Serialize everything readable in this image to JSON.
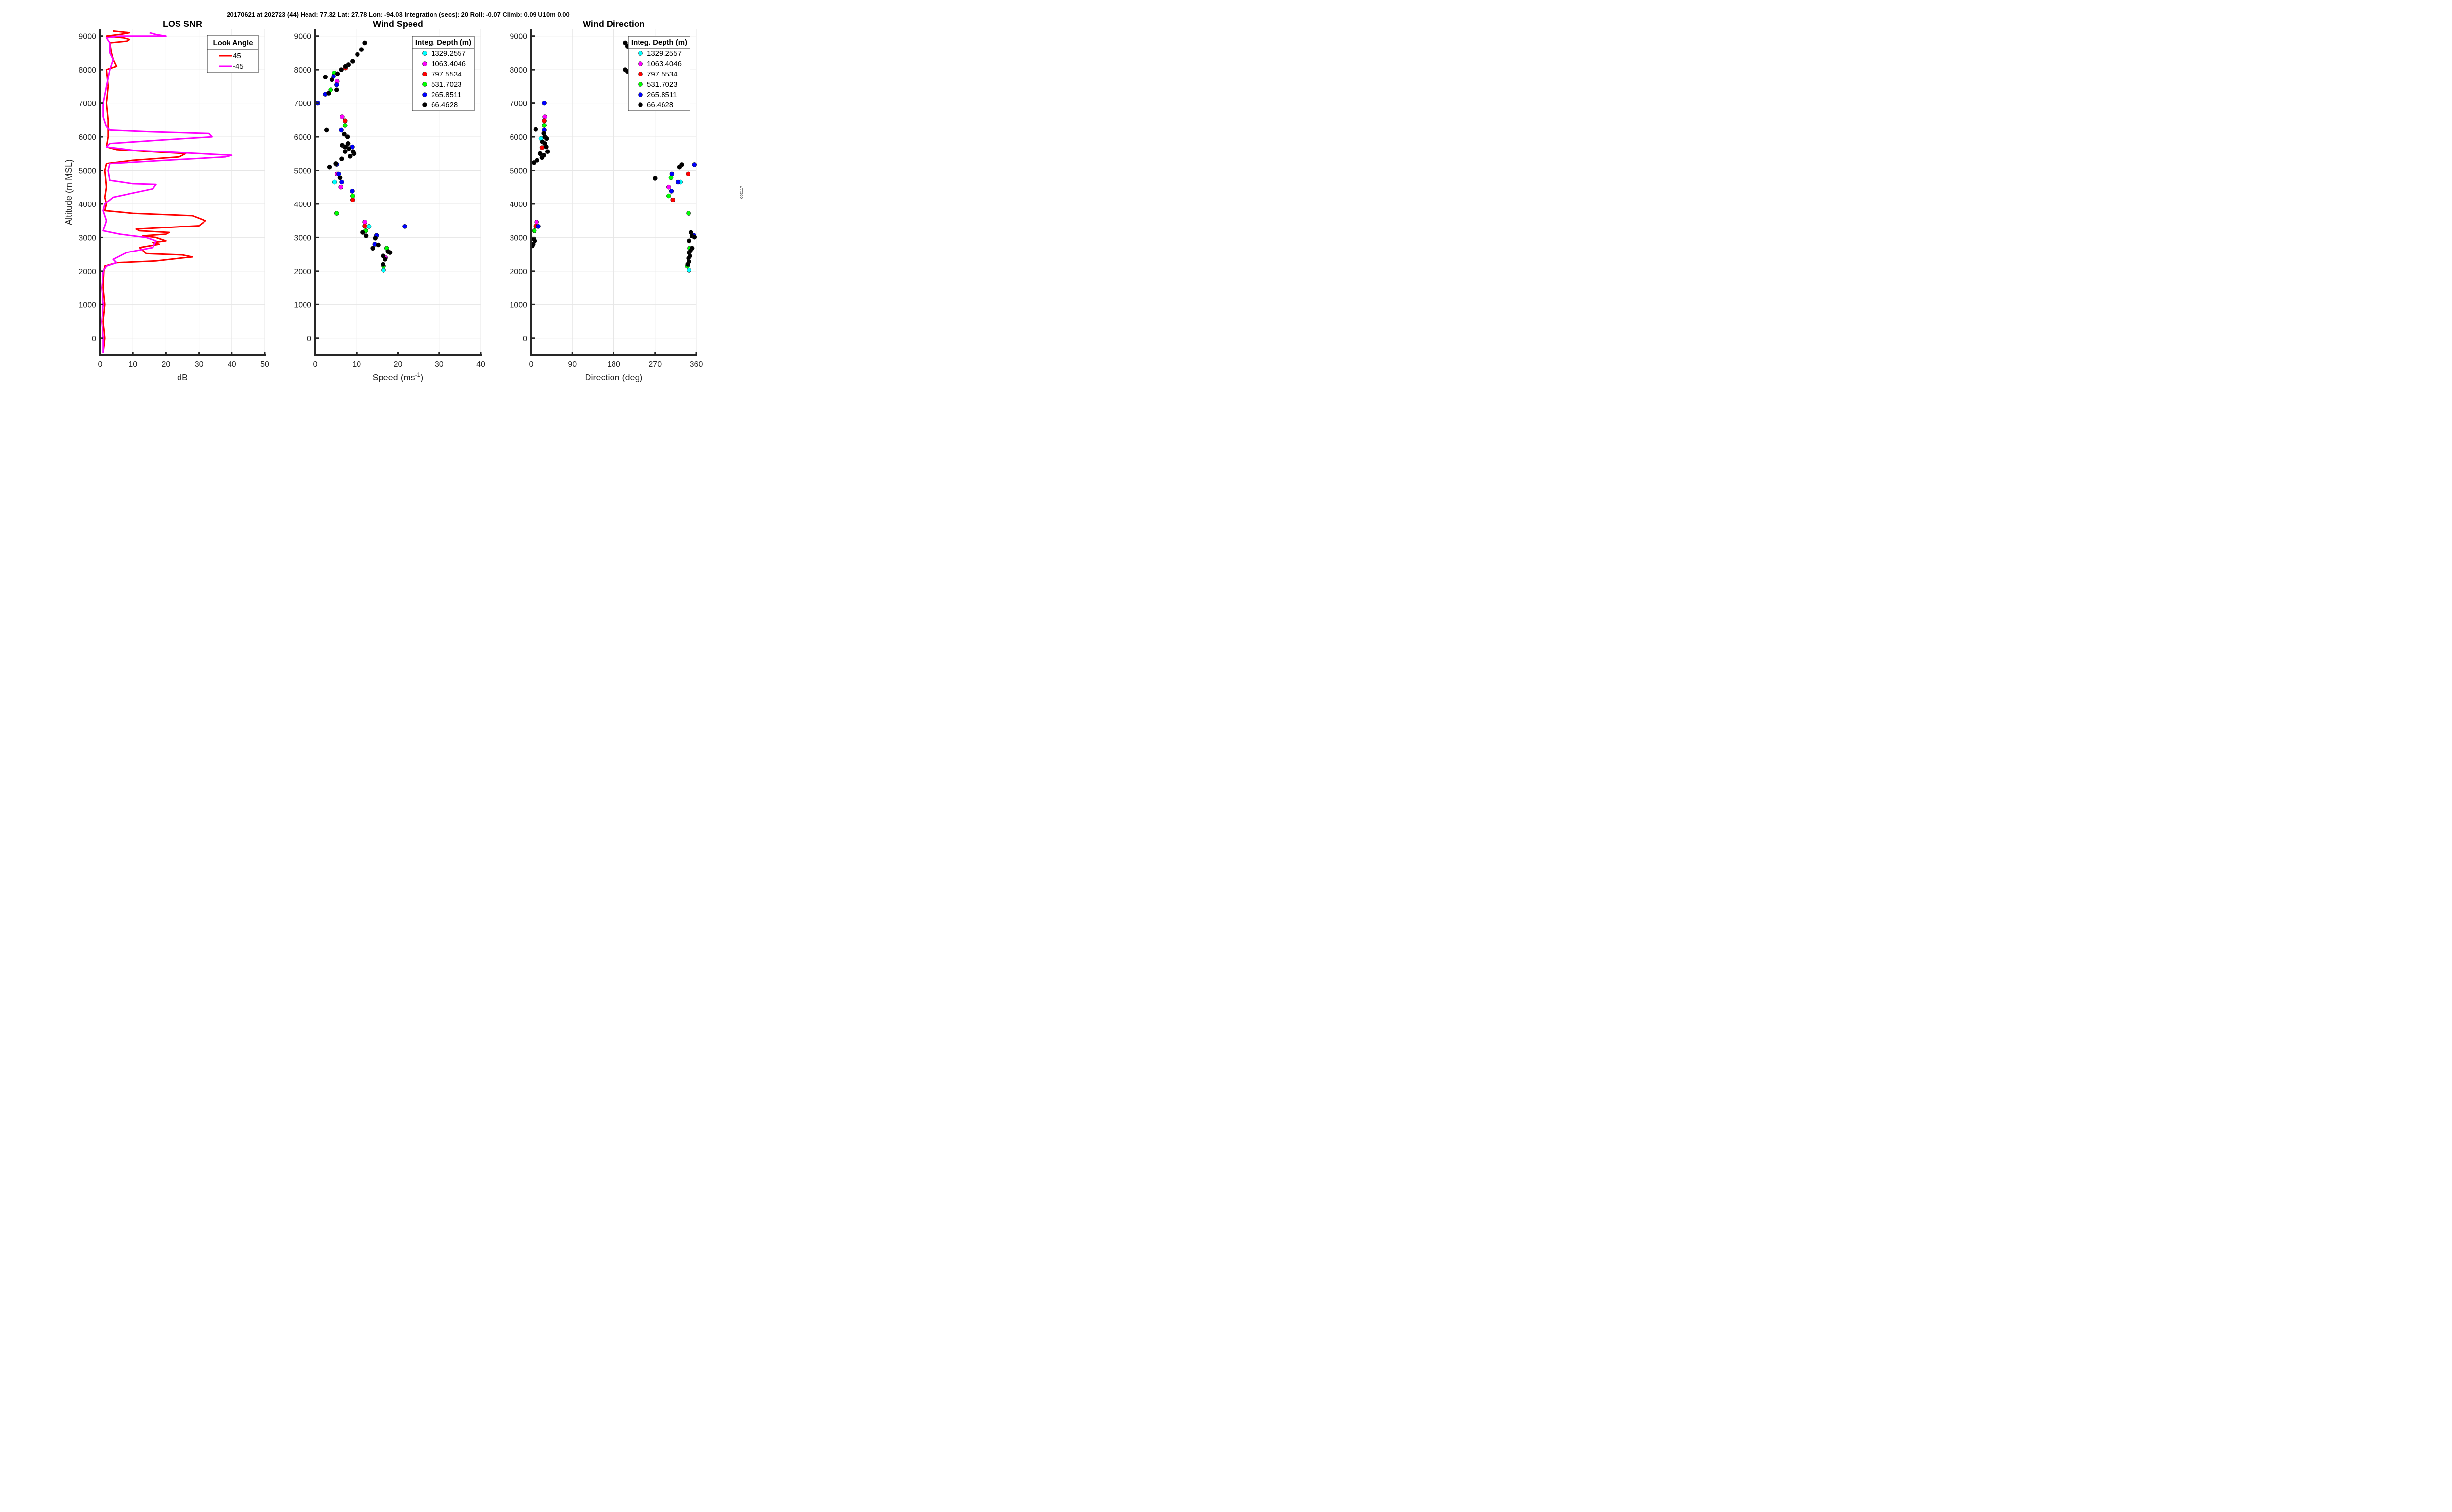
{
  "header": "20170621 at 202723 (44)  Head: 77.32  Lat: 27.78  Lon: -94.03  Integration (secs): 20  Roll: -0.07  Climb: 0.09  U10m 0.00",
  "side_label": "062117",
  "y_ticks": [
    "9000",
    "8000",
    "7000",
    "6000",
    "5000",
    "4000",
    "3000",
    "2000",
    "1000",
    "0"
  ],
  "y_axis_label": "Altitude (m MSL)",
  "chart_data": [
    {
      "type": "line",
      "title": "LOS SNR",
      "xlabel": "dB",
      "ylabel": "Altitude (m MSL)",
      "xlim": [
        0,
        50
      ],
      "ylim": [
        -500,
        9200
      ],
      "x_ticks": [
        "0",
        "10",
        "20",
        "30",
        "40",
        "50"
      ],
      "legend_title": "Look Angle",
      "legend_position": "top-right",
      "series": [
        {
          "name": "45",
          "color": "#ff0000",
          "points": [
            [
              1,
              -450
            ],
            [
              1.5,
              0
            ],
            [
              1,
              500
            ],
            [
              1.5,
              1000
            ],
            [
              1,
              1500
            ],
            [
              1.2,
              2000
            ],
            [
              1.5,
              2150
            ],
            [
              5,
              2250
            ],
            [
              17,
              2300
            ],
            [
              24,
              2380
            ],
            [
              28,
              2420
            ],
            [
              25,
              2480
            ],
            [
              14,
              2520
            ],
            [
              12,
              2700
            ],
            [
              18,
              2800
            ],
            [
              16,
              2850
            ],
            [
              20,
              2900
            ],
            [
              17,
              3000
            ],
            [
              13,
              3050
            ],
            [
              20,
              3100
            ],
            [
              21,
              3150
            ],
            [
              12,
              3200
            ],
            [
              11,
              3250
            ],
            [
              30,
              3350
            ],
            [
              32,
              3500
            ],
            [
              28,
              3650
            ],
            [
              10,
              3720
            ],
            [
              1.5,
              3800
            ],
            [
              2,
              4000
            ],
            [
              1.5,
              4200
            ],
            [
              2,
              4500
            ],
            [
              1.5,
              5000
            ],
            [
              2,
              5200
            ],
            [
              10,
              5300
            ],
            [
              24,
              5400
            ],
            [
              26,
              5500
            ],
            [
              15,
              5560
            ],
            [
              5,
              5620
            ],
            [
              2,
              5700
            ],
            [
              2.5,
              6000
            ],
            [
              2.5,
              6200
            ],
            [
              2.5,
              6500
            ],
            [
              2,
              7000
            ],
            [
              2.5,
              7500
            ],
            [
              2,
              8000
            ],
            [
              5,
              8100
            ],
            [
              4,
              8300
            ],
            [
              3.5,
              8500
            ],
            [
              3,
              8800
            ],
            [
              8,
              8850
            ],
            [
              9,
              8900
            ],
            [
              7,
              8950
            ],
            [
              2,
              9000
            ],
            [
              6,
              9050
            ],
            [
              9,
              9100
            ],
            [
              4,
              9150
            ]
          ]
        },
        {
          "name": "-45",
          "color": "#ff00ff",
          "points": [
            [
              1,
              -450
            ],
            [
              1,
              0
            ],
            [
              0.5,
              500
            ],
            [
              1,
              1000
            ],
            [
              0.5,
              1500
            ],
            [
              1,
              2000
            ],
            [
              2,
              2150
            ],
            [
              5,
              2250
            ],
            [
              4,
              2350
            ],
            [
              8,
              2550
            ],
            [
              16,
              2700
            ],
            [
              17,
              2900
            ],
            [
              14,
              3000
            ],
            [
              6,
              3100
            ],
            [
              1,
              3200
            ],
            [
              2,
              3500
            ],
            [
              1,
              3800
            ],
            [
              1.5,
              4000
            ],
            [
              4,
              4200
            ],
            [
              16,
              4450
            ],
            [
              17,
              4580
            ],
            [
              10,
              4600
            ],
            [
              3,
              4700
            ],
            [
              2.5,
              5000
            ],
            [
              3,
              5200
            ],
            [
              20,
              5300
            ],
            [
              38,
              5400
            ],
            [
              40,
              5450
            ],
            [
              30,
              5500
            ],
            [
              10,
              5600
            ],
            [
              2,
              5700
            ],
            [
              3,
              5800
            ],
            [
              18,
              5900
            ],
            [
              34,
              6000
            ],
            [
              33,
              6100
            ],
            [
              15,
              6150
            ],
            [
              3,
              6200
            ],
            [
              2,
              6300
            ],
            [
              1,
              6600
            ],
            [
              1,
              7000
            ],
            [
              2,
              7500
            ],
            [
              3,
              8000
            ],
            [
              4,
              8300
            ],
            [
              3,
              8500
            ],
            [
              3,
              8800
            ],
            [
              2,
              8950
            ],
            [
              6,
              9000
            ],
            [
              20,
              9000
            ],
            [
              17,
              9050
            ],
            [
              15,
              9100
            ]
          ]
        }
      ]
    },
    {
      "type": "scatter",
      "title": "Wind Speed",
      "xlabel": "Speed (ms-1)",
      "xlabel_main": "Speed (ms",
      "xlabel_sup": "-1",
      "xlabel_end": ")",
      "ylabel": "Altitude (m MSL)",
      "xlim": [
        0,
        40
      ],
      "ylim": [
        -500,
        9200
      ],
      "x_ticks": [
        "0",
        "10",
        "20",
        "30",
        "40"
      ],
      "legend_title": "Integ. Depth (m)",
      "legend_position": "top-right",
      "series": [
        {
          "name": "1329.2557",
          "color": "#00ffff",
          "points": [
            [
              4.7,
              4650
            ],
            [
              13,
              3330
            ],
            [
              16.5,
              2030
            ]
          ]
        },
        {
          "name": "1063.4046",
          "color": "#ff00ff",
          "points": [
            [
              6.5,
              6600
            ],
            [
              5.3,
              7650
            ],
            [
              5.3,
              4900
            ],
            [
              6.2,
              4500
            ],
            [
              12,
              3460
            ],
            [
              17,
              2400
            ]
          ]
        },
        {
          "name": "797.5534",
          "color": "#ff0000",
          "points": [
            [
              7.2,
              6480
            ],
            [
              7.3,
              8050
            ],
            [
              9,
              4120
            ],
            [
              12,
              3340
            ]
          ]
        },
        {
          "name": "531.7023",
          "color": "#00ff00",
          "points": [
            [
              7.2,
              6340
            ],
            [
              4.6,
              7900
            ],
            [
              3.7,
              7400
            ],
            [
              5.2,
              3720
            ],
            [
              9,
              4240
            ],
            [
              12.2,
              3200
            ],
            [
              17.3,
              2680
            ],
            [
              16.5,
              2150
            ]
          ]
        },
        {
          "name": "265.8511",
          "color": "#0000ff",
          "points": [
            [
              0.6,
              7000
            ],
            [
              2.4,
              7270
            ],
            [
              4.4,
              7800
            ],
            [
              5.2,
              7550
            ],
            [
              6.3,
              6200
            ],
            [
              8.9,
              5700
            ],
            [
              5.2,
              5180
            ],
            [
              6.4,
              4650
            ],
            [
              8.9,
              4380
            ],
            [
              5.7,
              4900
            ],
            [
              14.8,
              3060
            ],
            [
              14.4,
              2800
            ],
            [
              21.6,
              3330
            ]
          ]
        },
        {
          "name": "66.4628",
          "color": "#000000",
          "points": [
            [
              12,
              8800
            ],
            [
              11.2,
              8600
            ],
            [
              10.2,
              8450
            ],
            [
              9,
              8250
            ],
            [
              8,
              8150
            ],
            [
              7.3,
              8100
            ],
            [
              6.3,
              8000
            ],
            [
              5.4,
              7880
            ],
            [
              4,
              7700
            ],
            [
              2.4,
              7780
            ],
            [
              3.2,
              7300
            ],
            [
              5.2,
              7400
            ],
            [
              2.7,
              6200
            ],
            [
              7,
              6080
            ],
            [
              7.8,
              6000
            ],
            [
              7.9,
              5800
            ],
            [
              6.5,
              5750
            ],
            [
              7.1,
              5700
            ],
            [
              8.1,
              5650
            ],
            [
              9.3,
              5500
            ],
            [
              9.1,
              5560
            ],
            [
              5,
              5200
            ],
            [
              6,
              4780
            ],
            [
              3.4,
              5100
            ],
            [
              6.4,
              5340
            ],
            [
              7.2,
              5560
            ],
            [
              7.3,
              5700
            ],
            [
              8.4,
              5420
            ],
            [
              11.5,
              3150
            ],
            [
              12.3,
              3050
            ],
            [
              14.5,
              2980
            ],
            [
              15.2,
              2780
            ],
            [
              13.9,
              2680
            ],
            [
              17.6,
              2580
            ],
            [
              18.1,
              2550
            ],
            [
              16.9,
              2350
            ],
            [
              16.4,
              2200
            ],
            [
              16.4,
              2450
            ]
          ]
        }
      ]
    },
    {
      "type": "scatter",
      "title": "Wind Direction",
      "xlabel": "Direction (deg)",
      "ylabel": "Altitude (m MSL)",
      "xlim": [
        0,
        360
      ],
      "ylim": [
        -500,
        9200
      ],
      "x_ticks": [
        "0",
        "90",
        "180",
        "270",
        "360"
      ],
      "legend_title": "Integ. Depth (m)",
      "legend_position": "top-right",
      "series": [
        {
          "name": "1329.2557",
          "color": "#00ffff",
          "points": [
            [
              22,
              5950
            ],
            [
              325,
              4650
            ],
            [
              344,
              2030
            ]
          ]
        },
        {
          "name": "1063.4046",
          "color": "#ff00ff",
          "points": [
            [
              30,
              6600
            ],
            [
              12,
              3460
            ],
            [
              300,
              4500
            ]
          ]
        },
        {
          "name": "797.5534",
          "color": "#ff0000",
          "points": [
            [
              29,
              6480
            ],
            [
              24,
              5680
            ],
            [
              10,
              3340
            ],
            [
              309,
              4120
            ],
            [
              342,
              4900
            ]
          ]
        },
        {
          "name": "531.7023",
          "color": "#00ff00",
          "points": [
            [
              29,
              6340
            ],
            [
              7,
              3200
            ],
            [
              305,
              4780
            ],
            [
              300,
              4240
            ],
            [
              343,
              3720
            ],
            [
              345,
              2680
            ],
            [
              340,
              2150
            ]
          ]
        },
        {
          "name": "265.8511",
          "color": "#0000ff",
          "points": [
            [
              29,
              7000
            ],
            [
              29,
              6200
            ],
            [
              16,
              3330
            ],
            [
              306,
              4380
            ],
            [
              320,
              4650
            ],
            [
              307,
              4900
            ],
            [
              356,
              5170
            ],
            [
              355,
              3060
            ]
          ]
        },
        {
          "name": "66.4628",
          "color": "#000000",
          "points": [
            [
              205,
              8800
            ],
            [
              210,
              8700
            ],
            [
              215,
              8650
            ],
            [
              205,
              8000
            ],
            [
              210,
              7950
            ],
            [
              10,
              6220
            ],
            [
              28,
              6100
            ],
            [
              30,
              6000
            ],
            [
              25,
              5850
            ],
            [
              34,
              5950
            ],
            [
              30,
              5800
            ],
            [
              33,
              5700
            ],
            [
              36,
              5560
            ],
            [
              28,
              5450
            ],
            [
              20,
              5500
            ],
            [
              13,
              5300
            ],
            [
              6,
              5230
            ],
            [
              24,
              5380
            ],
            [
              270,
              4760
            ],
            [
              328,
              5170
            ],
            [
              323,
              5100
            ],
            [
              6,
              2950
            ],
            [
              4,
              2800
            ],
            [
              2,
              2750
            ],
            [
              8,
              2900
            ],
            [
              348,
              3150
            ],
            [
              350,
              3050
            ],
            [
              356,
              3010
            ],
            [
              344,
              2900
            ],
            [
              351,
              2680
            ],
            [
              344,
              2550
            ],
            [
              346,
              2450
            ],
            [
              343,
              2380
            ],
            [
              344,
              2280
            ],
            [
              341,
              2200
            ],
            [
              347,
              2600
            ]
          ]
        }
      ]
    }
  ]
}
